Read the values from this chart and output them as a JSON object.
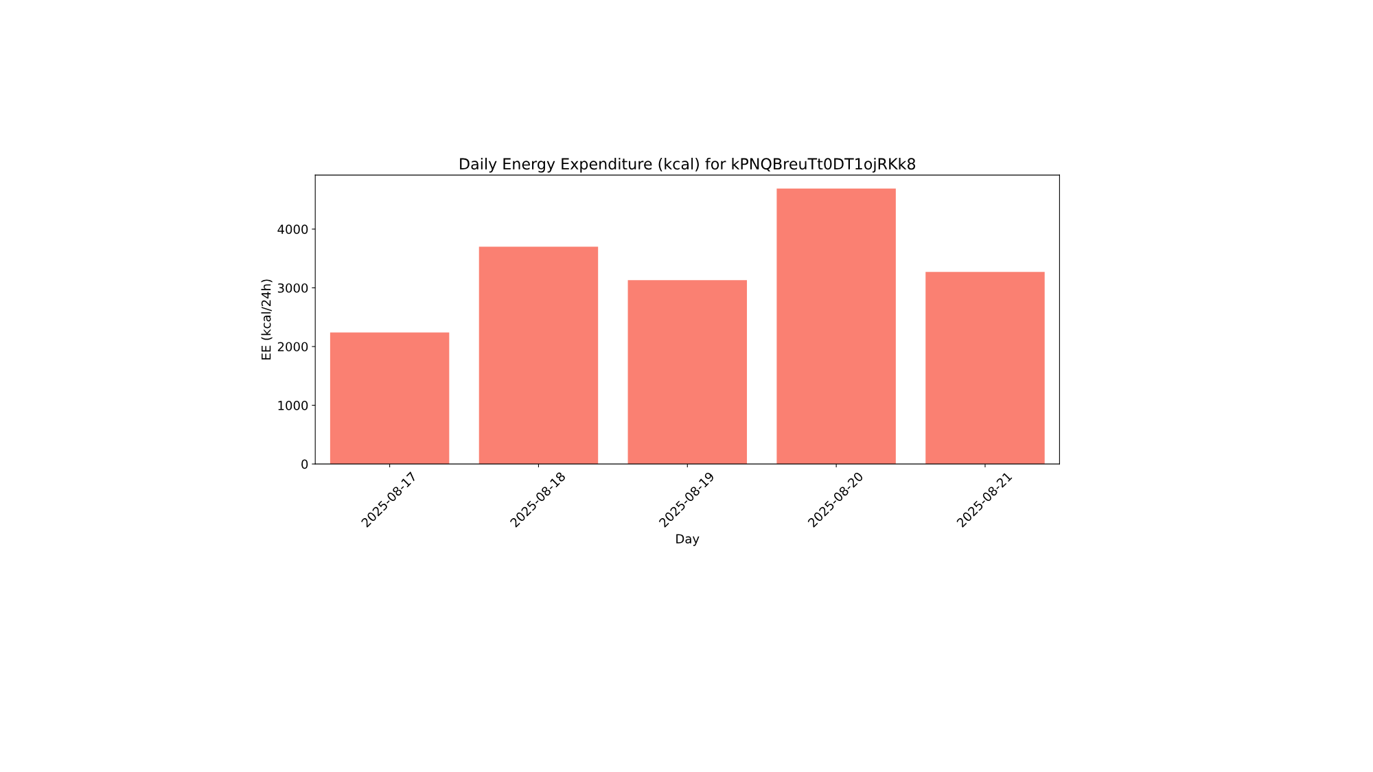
{
  "chart_data": {
    "type": "bar",
    "title": "Daily Energy Expenditure (kcal) for kPNQBreuTt0DT1ojRKk8",
    "xlabel": "Day",
    "ylabel": "EE (kcal/24h)",
    "categories": [
      "2025-08-17",
      "2025-08-18",
      "2025-08-19",
      "2025-08-20",
      "2025-08-21"
    ],
    "values": [
      2240,
      3700,
      3130,
      4690,
      3270
    ],
    "color": "#fa8072",
    "ylim": [
      0,
      4920
    ],
    "yticks": [
      0,
      1000,
      2000,
      3000,
      4000
    ],
    "grid": false,
    "legend": false
  }
}
